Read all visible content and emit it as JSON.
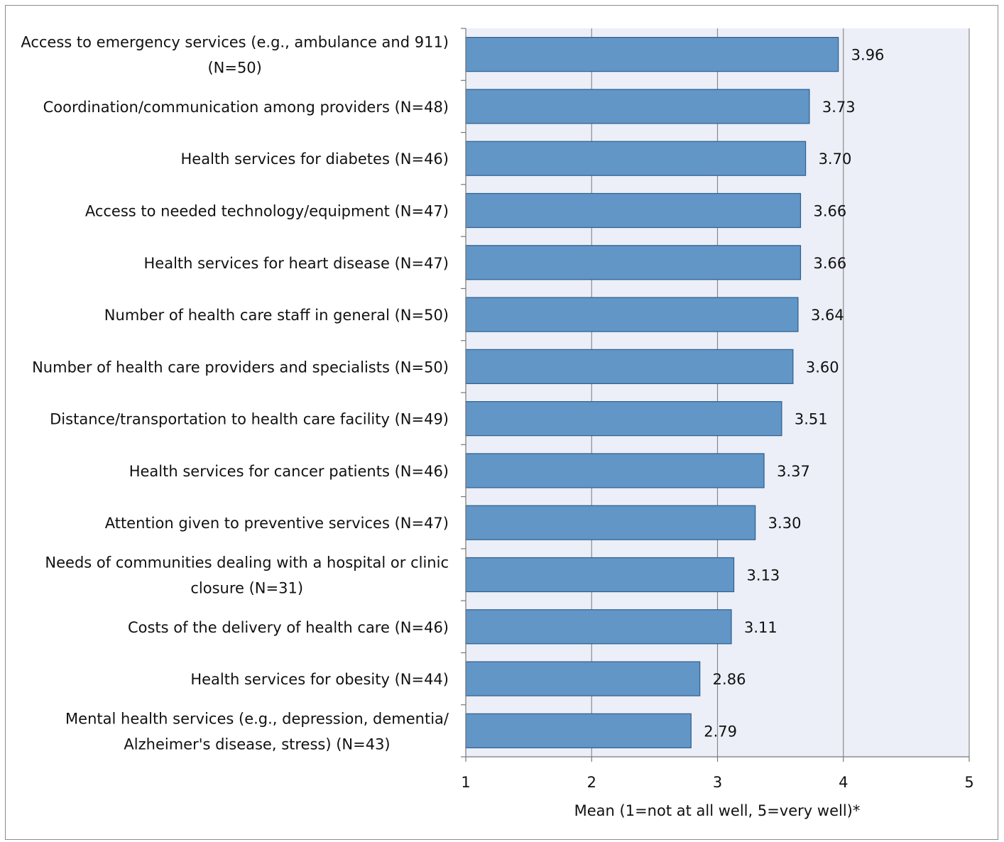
{
  "chart_data": {
    "type": "bar",
    "orientation": "horizontal",
    "categories": [
      [
        "Access to emergency services (e.g., ambulance and 911)",
        "(N=50)"
      ],
      [
        "Coordination/communication among providers (N=48)"
      ],
      [
        "Health services for diabetes (N=46)"
      ],
      [
        "Access to needed technology/equipment (N=47)"
      ],
      [
        "Health services for heart disease (N=47)"
      ],
      [
        "Number of health care staff in general (N=50)"
      ],
      [
        "Number of health care providers and specialists (N=50)"
      ],
      [
        "Distance/transportation to health care facility (N=49)"
      ],
      [
        "Health services for cancer patients (N=46)"
      ],
      [
        "Attention given to preventive services (N=47)"
      ],
      [
        "Needs of communities dealing with a hospital or clinic",
        "closure (N=31)"
      ],
      [
        "Costs of the delivery of health care (N=46)"
      ],
      [
        "Health services for obesity (N=44)"
      ],
      [
        "Mental health services (e.g., depression, dementia/",
        "Alzheimer's disease, stress) (N=43)"
      ]
    ],
    "values": [
      3.96,
      3.73,
      3.7,
      3.66,
      3.66,
      3.64,
      3.6,
      3.51,
      3.37,
      3.3,
      3.13,
      3.11,
      2.86,
      2.79
    ],
    "value_labels": [
      "3.96",
      "3.73",
      "3.70",
      "3.66",
      "3.66",
      "3.64",
      "3.60",
      "3.51",
      "3.37",
      "3.30",
      "3.13",
      "3.11",
      "2.86",
      "2.79"
    ],
    "xlim": [
      1,
      5
    ],
    "xticks": [
      "1",
      "2",
      "3",
      "4",
      "5"
    ],
    "xlabel": "Mean (1=not at all well, 5=very well)*",
    "grid": "vertical",
    "colors": {
      "bar": "#6196c7",
      "bar_edge": "#2f5e8e",
      "plot_bg": "#eceff7"
    }
  }
}
